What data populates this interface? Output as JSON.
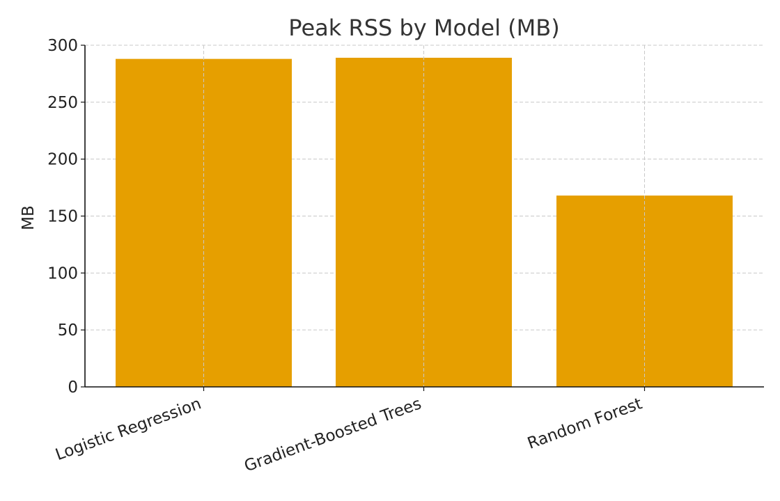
{
  "chart_data": {
    "type": "bar",
    "title": "Peak RSS by Model (MB)",
    "xlabel": "",
    "ylabel": "MB",
    "categories": [
      "Logistic Regression",
      "Gradient-Boosted Trees",
      "Random Forest"
    ],
    "values": [
      288,
      289,
      168
    ],
    "ylim": [
      0,
      300
    ],
    "yticks": [
      "0",
      "50",
      "100",
      "150",
      "200",
      "250",
      "300"
    ],
    "grid": true,
    "bar_color": "#E69F00",
    "xtick_rotation_deg": -20
  }
}
